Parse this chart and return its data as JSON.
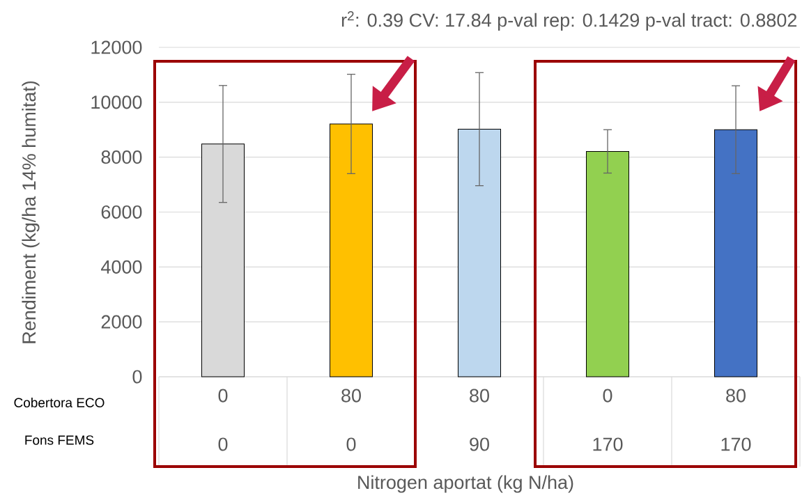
{
  "chart_data": {
    "type": "bar",
    "ylabel": "Rendiment (kg/ha 14% humitat)",
    "xlabel": "Nitrogen aportat (kg N/ha)",
    "categories": [
      "0",
      "80",
      "80",
      "0",
      "80"
    ],
    "values": [
      8480,
      9210,
      9020,
      8210,
      9000
    ],
    "errors": [
      2130,
      1810,
      2060,
      790,
      1600
    ],
    "colors": [
      "#d9d9d9",
      "#ffc000",
      "#bdd7ee",
      "#92d050",
      "#4472c4"
    ],
    "ylim": [
      0,
      12000
    ],
    "yticks": [
      0,
      2000,
      4000,
      6000,
      8000,
      10000,
      12000
    ],
    "grid": "y",
    "annotations": [
      "r$^{2}$: 0.39   CV: 17.84   p-val rep: 0.1429   p-val tract: 0.8802",
      "Cobertora ECO",
      "Fons FEMS",
      "0",
      "0",
      "90",
      "170",
      "170"
    ]
  }
}
